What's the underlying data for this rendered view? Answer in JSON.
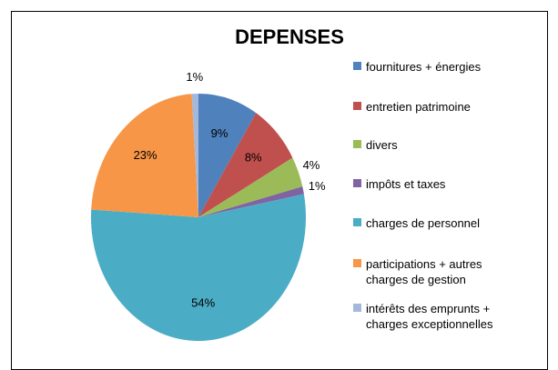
{
  "chart_data": {
    "type": "pie",
    "title": "DEPENSES",
    "categories": [
      "fournitures + énergies",
      "entretien patrimoine",
      "divers",
      "impôts et taxes",
      "charges de personnel",
      "participations + autres charges de gestion",
      "intérêts des emprunts + charges exceptionnelles"
    ],
    "values": [
      9,
      8,
      4,
      1,
      54,
      23,
      1
    ],
    "value_labels": [
      "9%",
      "8%",
      "4%",
      "1%",
      "54%",
      "23%",
      "1%"
    ],
    "colors": [
      "#4f81bd",
      "#c0504d",
      "#9bbb59",
      "#8064a2",
      "#4bacc6",
      "#f79646",
      "#a5b8da"
    ],
    "legend": "right"
  }
}
